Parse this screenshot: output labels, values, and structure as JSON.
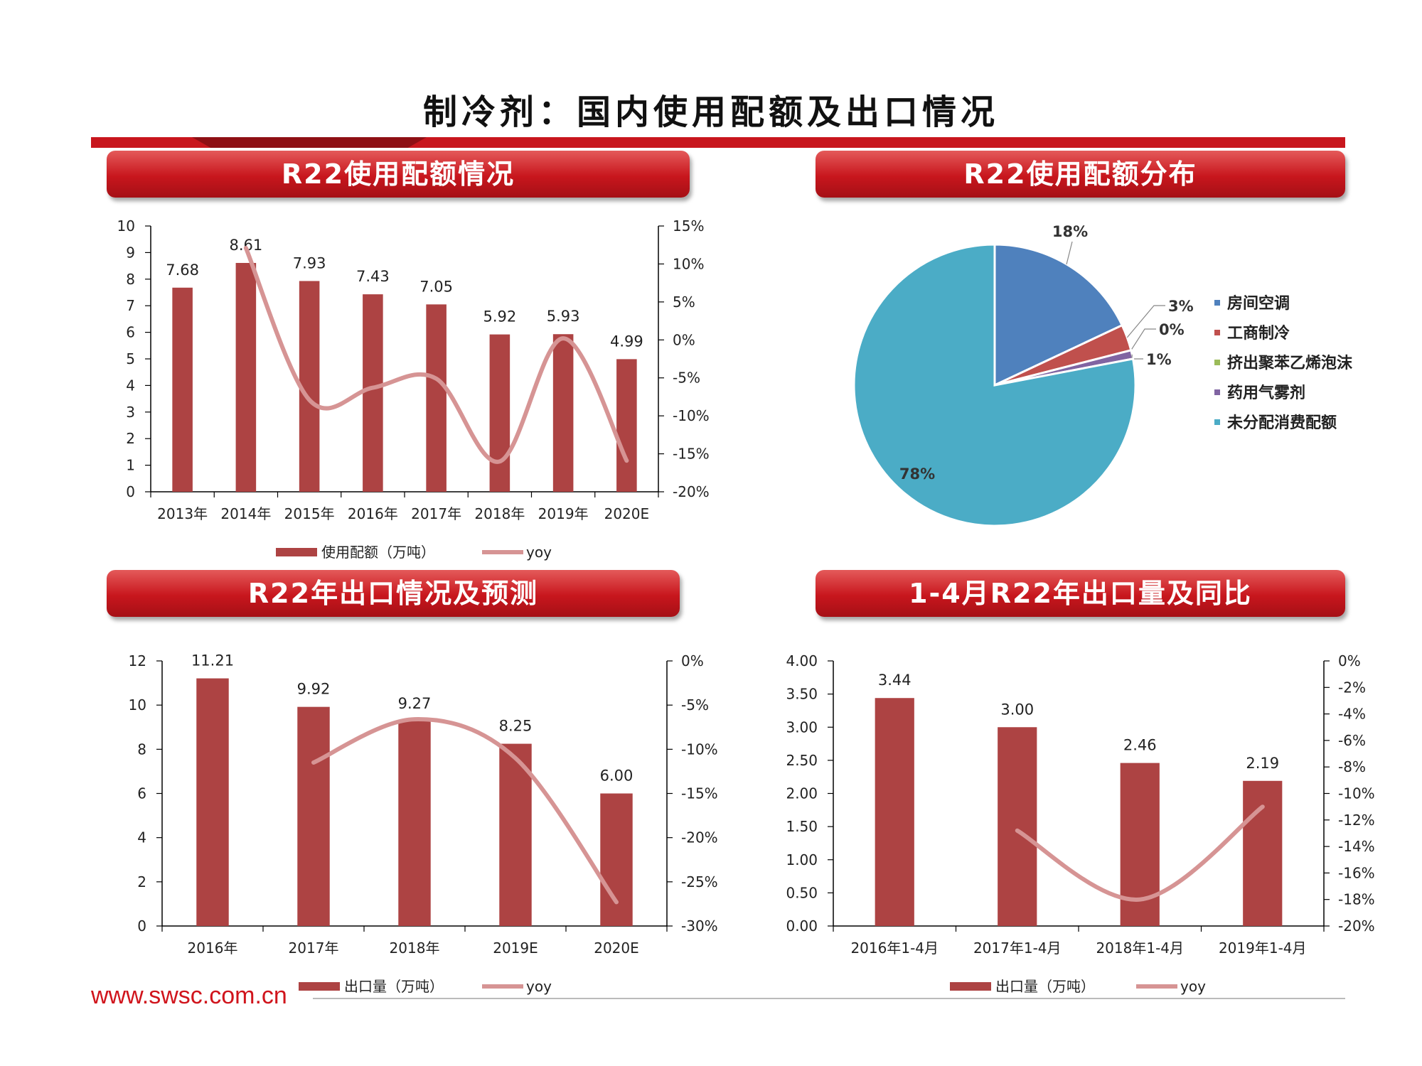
{
  "page_title": "制冷剂：国内使用配额及出口情况",
  "footer": {
    "url": "www.swsc.com.cn"
  },
  "colors": {
    "bar": "#ad4343",
    "yoy_line": "#d69494",
    "banner": "#c8161d"
  },
  "panels": [
    {
      "banner": "R22使用配额情况"
    },
    {
      "banner": "R22使用配额分布"
    },
    {
      "banner": "R22年出口情况及预测"
    },
    {
      "banner": "1-4月R22年出口量及同比"
    }
  ],
  "chart_data": [
    {
      "type": "bar",
      "categories": [
        "2013年",
        "2014年",
        "2015年",
        "2016年",
        "2017年",
        "2018年",
        "2019年",
        "2020E"
      ],
      "series": [
        {
          "name": "使用配额（万吨）",
          "type": "bar",
          "axis": "left",
          "values": [
            7.68,
            8.61,
            7.93,
            7.43,
            7.05,
            5.92,
            5.93,
            4.99
          ],
          "labels": [
            "7.68",
            "8.61",
            "7.93",
            "7.43",
            "7.05",
            "5.92",
            "5.93",
            "4.99"
          ]
        },
        {
          "name": "yoy",
          "type": "line",
          "axis": "right",
          "values": [
            null,
            12.1,
            -7.9,
            -6.3,
            -5.1,
            -16.0,
            0.2,
            -15.9
          ]
        }
      ],
      "ylim": [
        0,
        10
      ],
      "yticks": [
        "0",
        "1",
        "2",
        "3",
        "4",
        "5",
        "6",
        "7",
        "8",
        "9",
        "10"
      ],
      "y2lim": [
        -20,
        15
      ],
      "y2ticks": [
        "-20%",
        "-15%",
        "-10%",
        "-5%",
        "0%",
        "5%",
        "10%",
        "15%"
      ],
      "legend": "bottom"
    },
    {
      "type": "pie",
      "slices": [
        {
          "name": "房间空调",
          "value": 18,
          "label": "18%",
          "color": "#4f81bd"
        },
        {
          "name": "工商制冷",
          "value": 3,
          "label": "3%",
          "color": "#c0504d"
        },
        {
          "name": "挤出聚苯乙烯泡沫",
          "value": 0,
          "label": "0%",
          "color": "#9bbb59"
        },
        {
          "name": "药用气雾剂",
          "value": 1,
          "label": "1%",
          "color": "#8064a2"
        },
        {
          "name": "未分配消费配额",
          "value": 78,
          "label": "78%",
          "color": "#4bacc6"
        }
      ],
      "legend": "right"
    },
    {
      "type": "bar",
      "categories": [
        "2016年",
        "2017年",
        "2018年",
        "2019E",
        "2020E"
      ],
      "series": [
        {
          "name": "出口量（万吨）",
          "type": "bar",
          "axis": "left",
          "values": [
            11.21,
            9.92,
            9.27,
            8.25,
            6.0
          ],
          "labels": [
            "11.21",
            "9.92",
            "9.27",
            "8.25",
            "6.00"
          ]
        },
        {
          "name": "yoy",
          "type": "line",
          "axis": "right",
          "values": [
            null,
            -11.5,
            -6.6,
            -11.0,
            -27.3
          ]
        }
      ],
      "ylim": [
        0,
        12
      ],
      "yticks": [
        "0",
        "2",
        "4",
        "6",
        "8",
        "10",
        "12"
      ],
      "y2lim": [
        -30,
        0
      ],
      "y2ticks": [
        "-30%",
        "-25%",
        "-20%",
        "-15%",
        "-10%",
        "-5%",
        "0%"
      ],
      "legend": "bottom"
    },
    {
      "type": "bar",
      "categories": [
        "2016年1-4月",
        "2017年1-4月",
        "2018年1-4月",
        "2019年1-4月"
      ],
      "series": [
        {
          "name": "出口量（万吨）",
          "type": "bar",
          "axis": "left",
          "values": [
            3.44,
            3.0,
            2.46,
            2.19
          ],
          "labels": [
            "3.44",
            "3.00",
            "2.46",
            "2.19"
          ]
        },
        {
          "name": "yoy",
          "type": "line",
          "axis": "right",
          "values": [
            null,
            -12.8,
            -18.0,
            -11.0
          ]
        }
      ],
      "ylim": [
        0,
        4
      ],
      "yticks": [
        "0.00",
        "0.50",
        "1.00",
        "1.50",
        "2.00",
        "2.50",
        "3.00",
        "3.50",
        "4.00"
      ],
      "y2lim": [
        -20,
        0
      ],
      "y2ticks": [
        "-20%",
        "-18%",
        "-16%",
        "-14%",
        "-12%",
        "-10%",
        "-8%",
        "-6%",
        "-4%",
        "-2%",
        "0%"
      ],
      "legend": "bottom"
    }
  ]
}
